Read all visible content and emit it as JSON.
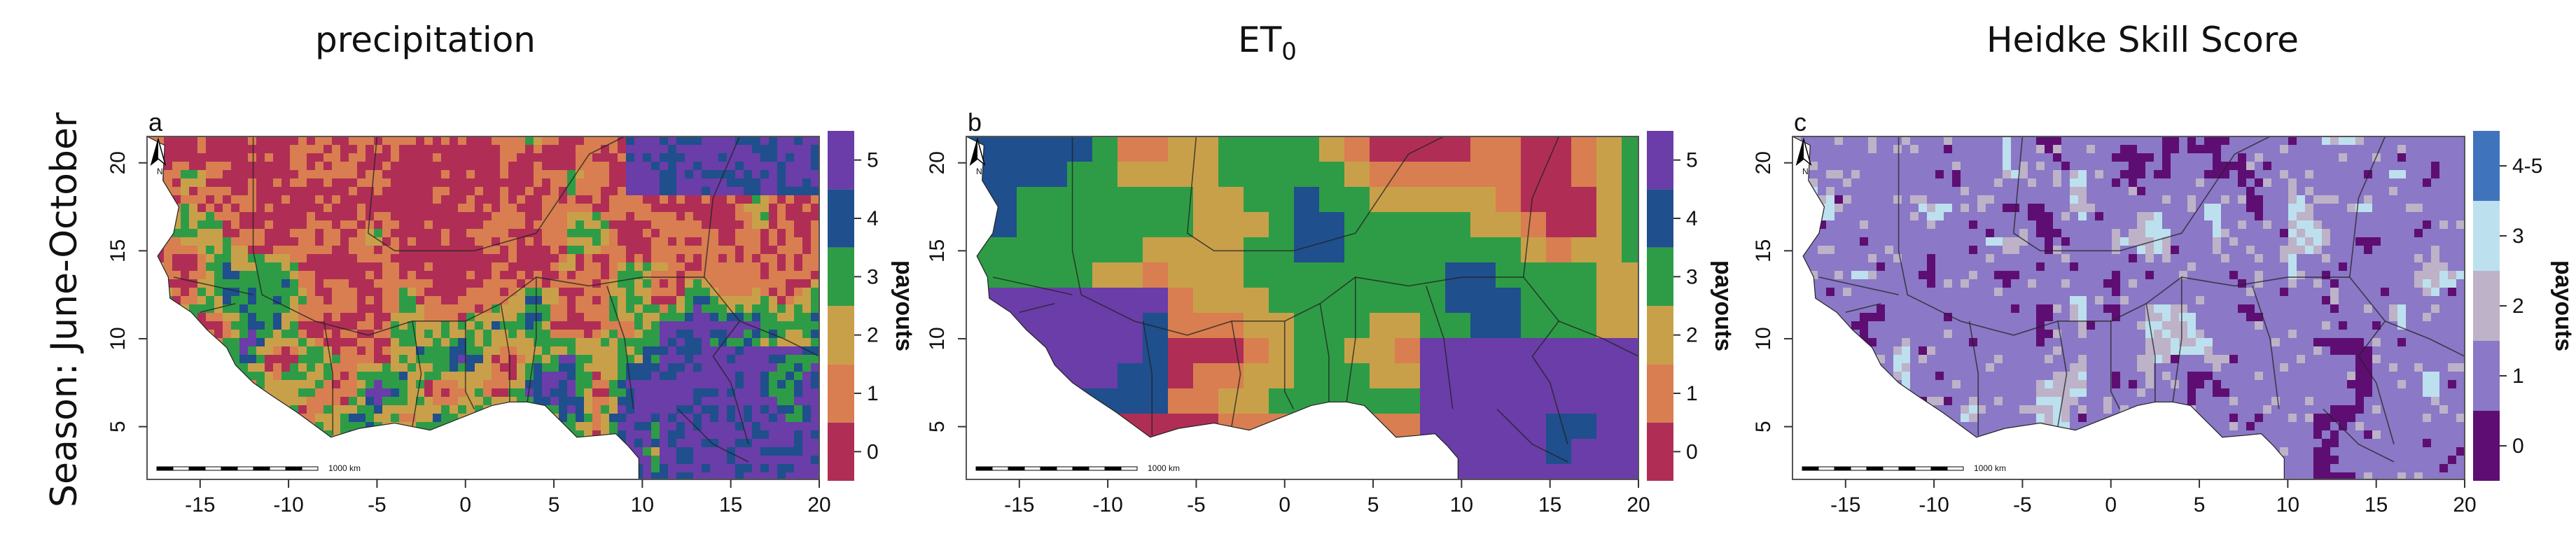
{
  "season_label": "Season: June-October",
  "colors": {
    "payout_0": "#b02e55",
    "payout_1": "#d97e50",
    "payout_2": "#c9a04a",
    "payout_3": "#2e9c46",
    "payout_4": "#1f4f8c",
    "payout_5": "#6a3da8",
    "hss_0": "#5e0e73",
    "hss_1": "#8b78c6",
    "hss_2": "#bdb2c7",
    "hss_3": "#bde0ee",
    "hss_45": "#3f74bd",
    "ocean": "#ffffff",
    "border": "#222222"
  },
  "x_ticks": [
    "-15",
    "-10",
    "-5",
    "0",
    "5",
    "10",
    "15",
    "20"
  ],
  "y_ticks": [
    "5",
    "10",
    "15",
    "20"
  ],
  "scale_bar_label": "1000 km",
  "north_arrow_label": "N",
  "panels": [
    {
      "letter": "a",
      "title": "precipitation",
      "legend_title": "payouts",
      "legend_labels": [
        "0",
        "1",
        "2",
        "3",
        "4",
        "5"
      ],
      "dominant": "payout_2"
    },
    {
      "letter": "b",
      "title_main": "ET",
      "title_sub": "0",
      "legend_title": "payouts",
      "legend_labels": [
        "0",
        "1",
        "2",
        "3",
        "4",
        "5"
      ],
      "dominant": "payout_3"
    },
    {
      "letter": "c",
      "title": "Heidke Skill Score",
      "legend_title": "payouts",
      "legend_labels": [
        "0",
        "1",
        "2",
        "3",
        "4-5"
      ],
      "dominant": "hss_1"
    }
  ],
  "map_data": {
    "region": "West Africa",
    "lon_range": [
      -18,
      20
    ],
    "lat_range": [
      2,
      21.5
    ],
    "panels": [
      {
        "variable": "precipitation",
        "categories": [
          "0",
          "1",
          "2",
          "3",
          "4",
          "5"
        ]
      },
      {
        "variable": "ET0",
        "categories": [
          "0",
          "1",
          "2",
          "3",
          "4",
          "5"
        ]
      },
      {
        "variable": "Heidke Skill Score",
        "categories": [
          "0",
          "1",
          "2",
          "3",
          "4-5"
        ]
      }
    ]
  }
}
